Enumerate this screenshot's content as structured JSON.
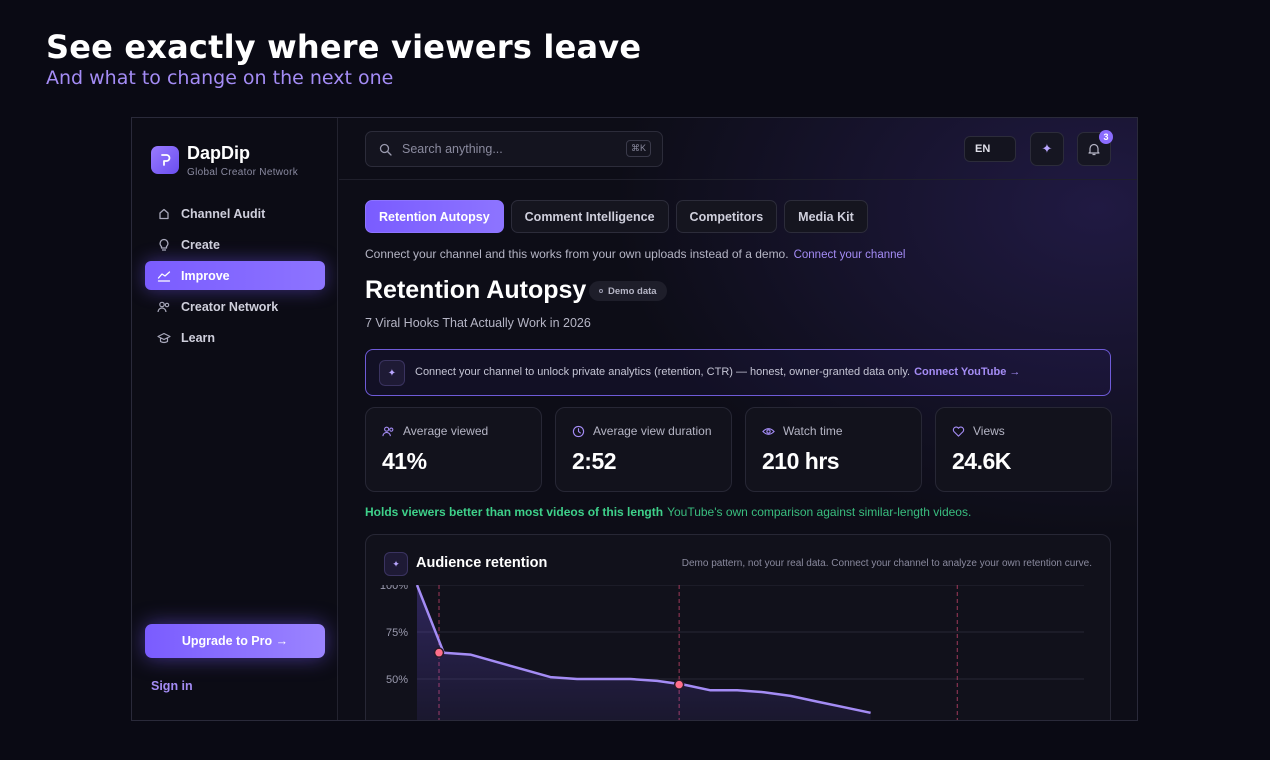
{
  "hero": {
    "title": "See exactly where viewers leave",
    "subtitle": "And what to change on the next one"
  },
  "sidebar": {
    "brand_name": "DapDip",
    "brand_tagline": "Global Creator Network",
    "items": [
      {
        "label": "Channel Audit",
        "icon": "search-icon"
      },
      {
        "label": "Create",
        "icon": "bulb-icon"
      },
      {
        "label": "Improve",
        "icon": "trend-icon",
        "active": true
      },
      {
        "label": "Creator Network",
        "icon": "users-icon"
      },
      {
        "label": "Learn",
        "icon": "graduation-cap-icon"
      }
    ],
    "upgrade_label": "Upgrade to Pro →",
    "signin_label": "Sign in"
  },
  "topbar": {
    "search_placeholder": "Search anything...",
    "search_shortcut": "⌘K",
    "language": "EN",
    "notification_count": "3"
  },
  "tabs": [
    {
      "label": "Retention Autopsy",
      "active": true
    },
    {
      "label": "Comment Intelligence"
    },
    {
      "label": "Competitors"
    },
    {
      "label": "Media Kit"
    }
  ],
  "connect_notice": {
    "text": "Connect your channel and this works from your own uploads instead of a demo.",
    "link": "Connect your channel"
  },
  "page": {
    "title": "Retention Autopsy",
    "badge": "Demo data",
    "video_title": "7 Viral Hooks That Actually Work in 2026"
  },
  "banner": {
    "text": "Connect your channel to unlock private analytics (retention, CTR) — honest, owner-granted data only.",
    "link": "Connect YouTube →"
  },
  "metrics": [
    {
      "label": "Average viewed",
      "value": "41%",
      "icon": "users-icon"
    },
    {
      "label": "Average view duration",
      "value": "2:52",
      "icon": "clock-icon"
    },
    {
      "label": "Watch time",
      "value": "210 hrs",
      "icon": "eye-icon"
    },
    {
      "label": "Views",
      "value": "24.6K",
      "icon": "heart-icon"
    }
  ],
  "comparison": {
    "headline": "Holds viewers better than most videos of this length",
    "detail": "YouTube's own comparison against similar-length videos."
  },
  "chart_card": {
    "title": "Audience retention",
    "note": "Demo pattern, not your real data. Connect your channel to analyze your own retention curve."
  },
  "colors": {
    "accent": "#7a5cff",
    "accent_light": "#a48cf5",
    "success": "#3ed08a",
    "marker": "#ff6f8a"
  },
  "chart_data": {
    "type": "area",
    "title": "Audience retention",
    "xlabel": "",
    "ylabel": "",
    "y_ticks": [
      "100%",
      "75%",
      "50%"
    ],
    "ylim": [
      0,
      100
    ],
    "xlim": [
      0,
      100
    ],
    "x": [
      0,
      4,
      8,
      12,
      16,
      20,
      24,
      28,
      32,
      36,
      40,
      44,
      48,
      52,
      56,
      60,
      64,
      68
    ],
    "values": [
      100,
      64,
      63,
      59,
      55,
      51,
      50,
      50,
      50,
      49,
      47,
      44,
      44,
      43,
      41,
      38,
      35,
      32
    ],
    "markers": [
      {
        "x": 3.3,
        "y": 64
      },
      {
        "x": 39.3,
        "y": 47
      }
    ],
    "dashed_lines_x": [
      3.3,
      39.3,
      81
    ],
    "grid": true
  }
}
